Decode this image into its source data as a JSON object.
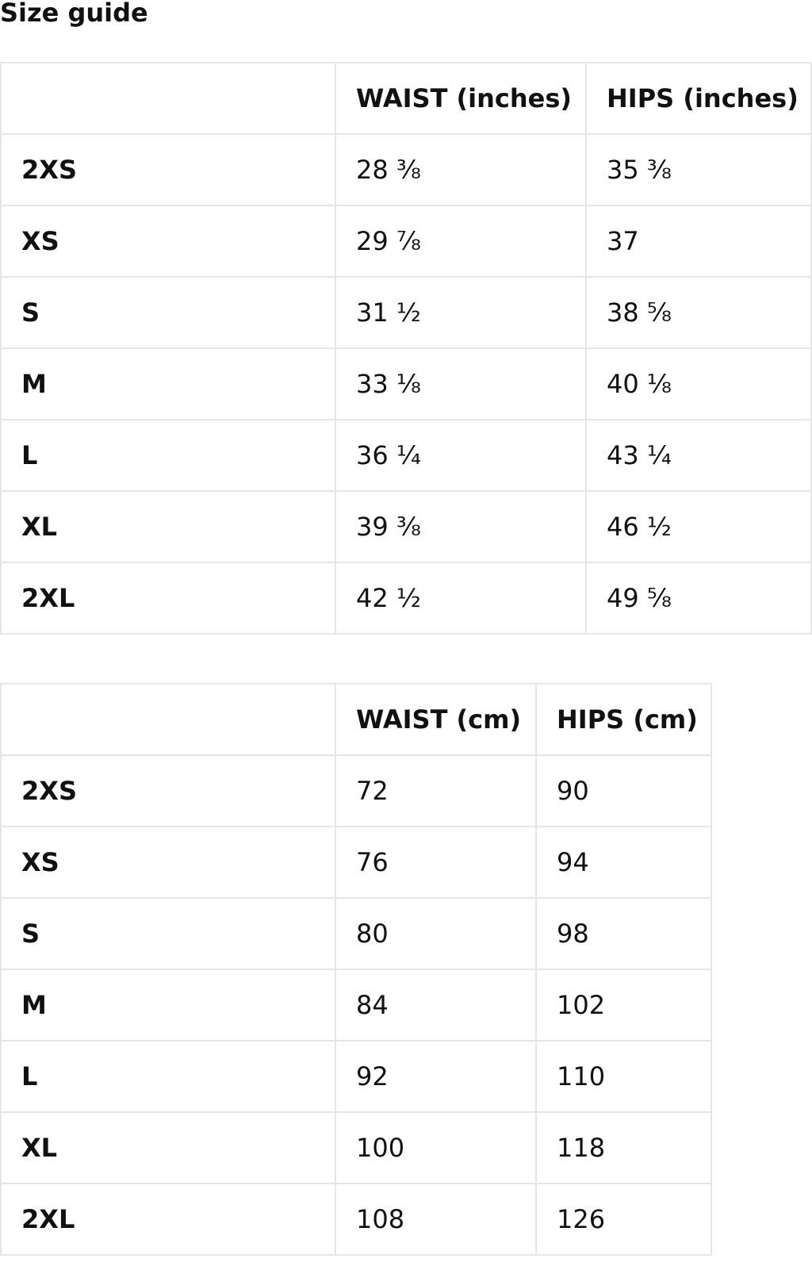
{
  "title": "Size guide",
  "inches_table": {
    "headers": [
      "",
      "WAIST (inches)",
      "HIPS (inches)"
    ],
    "rows": [
      [
        "2XS",
        "28 ⅜",
        "35 ⅜"
      ],
      [
        "XS",
        "29 ⅞",
        "37"
      ],
      [
        "S",
        "31 ½",
        "38 ⅝"
      ],
      [
        "M",
        "33 ⅛",
        "40 ⅛"
      ],
      [
        "L",
        "36 ¼",
        "43 ¼"
      ],
      [
        "XL",
        "39 ⅜",
        "46 ½"
      ],
      [
        "2XL",
        "42 ½",
        "49 ⅝"
      ]
    ]
  },
  "cm_table": {
    "headers": [
      "",
      "WAIST (cm)",
      "HIPS (cm)"
    ],
    "rows": [
      [
        "2XS",
        "72",
        "90"
      ],
      [
        "XS",
        "76",
        "94"
      ],
      [
        "S",
        "80",
        "98"
      ],
      [
        "M",
        "84",
        "102"
      ],
      [
        "L",
        "92",
        "110"
      ],
      [
        "XL",
        "100",
        "118"
      ],
      [
        "2XL",
        "108",
        "126"
      ]
    ]
  }
}
